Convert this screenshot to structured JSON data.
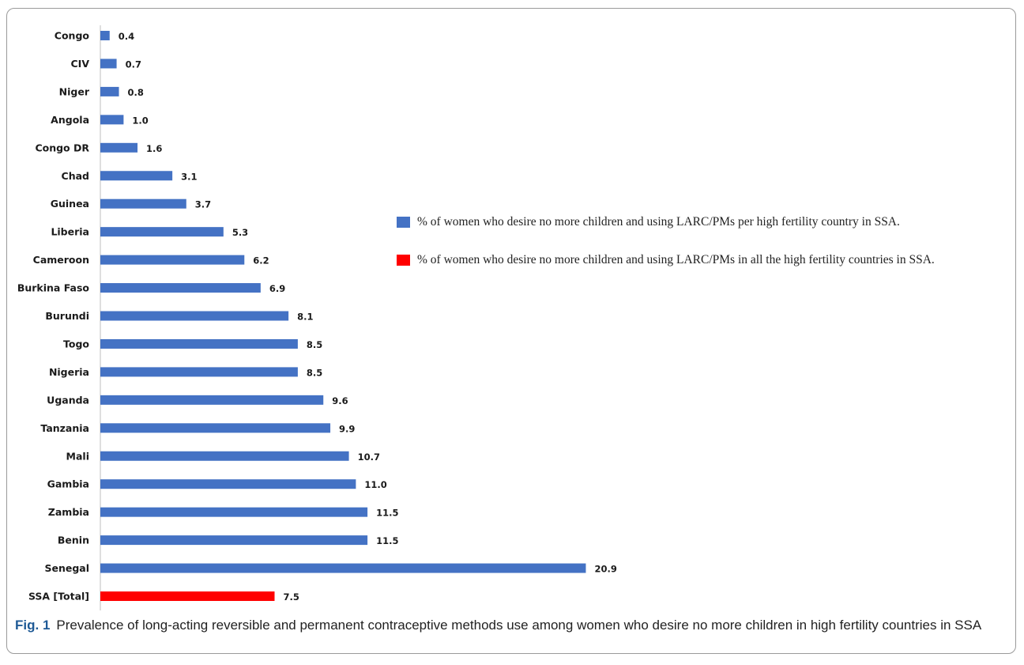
{
  "chart_data": {
    "type": "bar",
    "orientation": "horizontal",
    "categories": [
      "Congo",
      "CIV",
      "Niger",
      "Angola",
      "Congo DR",
      "Chad",
      "Guinea",
      "Liberia",
      "Cameroon",
      "Burkina Faso",
      "Burundi",
      "Togo",
      "Nigeria",
      "Uganda",
      "Tanzania",
      "Mali",
      "Gambia",
      "Zambia",
      "Benin",
      "Senegal",
      "SSA [Total]"
    ],
    "values": [
      0.4,
      0.7,
      0.8,
      1.0,
      1.6,
      3.1,
      3.7,
      5.3,
      6.2,
      6.9,
      8.1,
      8.5,
      8.5,
      9.6,
      9.9,
      10.7,
      11.0,
      11.5,
      11.5,
      20.9,
      7.5
    ],
    "value_labels": [
      "0.4",
      "0.7",
      "0.8",
      "1.0",
      "1.6",
      "3.1",
      "3.7",
      "5.3",
      "6.2",
      "6.9",
      "8.1",
      "8.5",
      "8.5",
      "9.6",
      "9.9",
      "10.7",
      "11.0",
      "11.5",
      "11.5",
      "20.9",
      "7.5"
    ],
    "bar_colors": [
      "#4472c4",
      "#4472c4",
      "#4472c4",
      "#4472c4",
      "#4472c4",
      "#4472c4",
      "#4472c4",
      "#4472c4",
      "#4472c4",
      "#4472c4",
      "#4472c4",
      "#4472c4",
      "#4472c4",
      "#4472c4",
      "#4472c4",
      "#4472c4",
      "#4472c4",
      "#4472c4",
      "#4472c4",
      "#4472c4",
      "#ff0000"
    ],
    "legend": [
      {
        "color": "#4472c4",
        "label": "% of women who desire no more children and using LARC/PMs per high fertility country in SSA."
      },
      {
        "color": "#ff0000",
        "label": "% of women who desire no more children and using LARC/PMs in all the high fertility countries in SSA."
      }
    ],
    "legend_position": "right",
    "xlim": [
      0,
      21
    ],
    "grid": false,
    "title": "",
    "xlabel": "",
    "ylabel": ""
  },
  "caption": {
    "fig_label": "Fig. 1",
    "text": "Prevalence of long-acting reversible and permanent contraceptive methods use among women who desire no more children in high fertility countries in SSA"
  }
}
